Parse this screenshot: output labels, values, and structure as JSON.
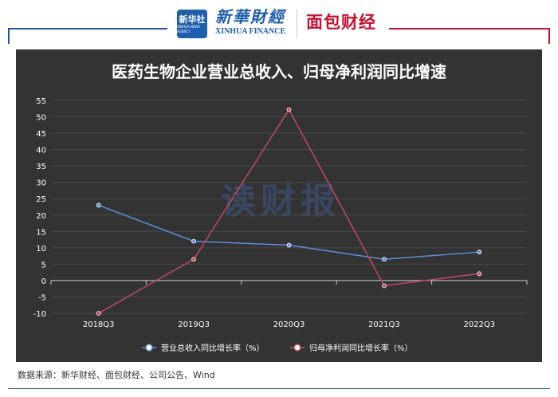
{
  "header": {
    "logo_zh": "新华社",
    "logo_en": "XINHUA NEWS AGENCY",
    "brand_zh": "新華財經",
    "brand_en": "XINHUA FINANCE",
    "partner": "面包财经",
    "accent_blue": "#1d5fae",
    "accent_red": "#c8102e"
  },
  "watermark": "读财报",
  "source": "数据来源：新华财经、面包财经、公司公告、Wind",
  "chart_data": {
    "type": "line",
    "title": "医药生物企业营业总收入、归母净利润同比增速",
    "categories": [
      "2018Q3",
      "2019Q3",
      "2020Q3",
      "2021Q3",
      "2022Q3"
    ],
    "ylim": [
      -10,
      55
    ],
    "yticks": [
      -10,
      -5,
      0,
      5,
      10,
      15,
      20,
      25,
      30,
      35,
      40,
      45,
      50,
      55
    ],
    "grid": true,
    "legend_position": "bottom",
    "series": [
      {
        "name": "营业总收入同比增长率（%）",
        "color": "#5b8fdc",
        "values": [
          23,
          12,
          10.8,
          6.5,
          8.7
        ]
      },
      {
        "name": "归母净利润同比增长率（%）",
        "color": "#c04a5e",
        "values": [
          -10,
          6.5,
          52.2,
          -1.6,
          2.1
        ]
      }
    ]
  }
}
